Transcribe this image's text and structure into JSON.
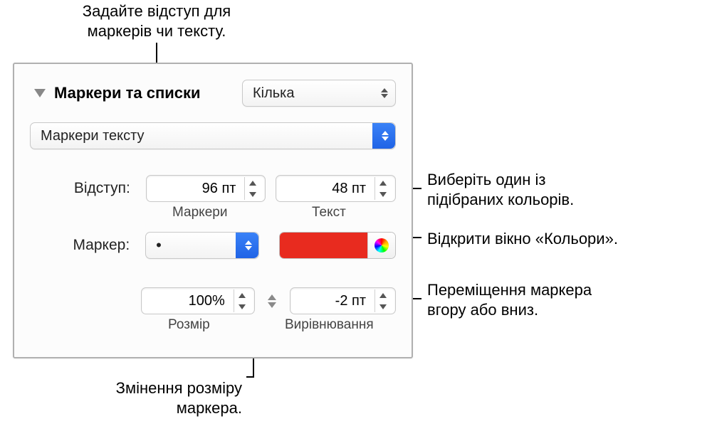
{
  "callouts": {
    "top": "Задайте відступ для\nмаркерів чи тексту.",
    "size": "Змінення розміру\nмаркера.",
    "color": "Виберіть один із\nпідібраних кольорів.",
    "wheel": "Відкрити вікно «Кольори».",
    "align": "Переміщення маркера\nвгору або вниз."
  },
  "panel": {
    "section_title": "Маркери та списки",
    "style_popup": "Кілька",
    "type_popup": "Маркери тексту",
    "indent_label": "Відступ:",
    "indent_bullets": {
      "value": "96 пт",
      "caption": "Маркери"
    },
    "indent_text": {
      "value": "48 пт",
      "caption": "Текст"
    },
    "marker_label": "Маркер:",
    "bullet_glyph": "•",
    "size": {
      "value": "100%",
      "caption": "Розмір"
    },
    "align": {
      "value": "-2 пт",
      "caption": "Вирівнювання"
    }
  },
  "colors": {
    "swatch": "#e82b1f",
    "panel_border": "#b0b0b0",
    "accent": "#1f63e6"
  }
}
